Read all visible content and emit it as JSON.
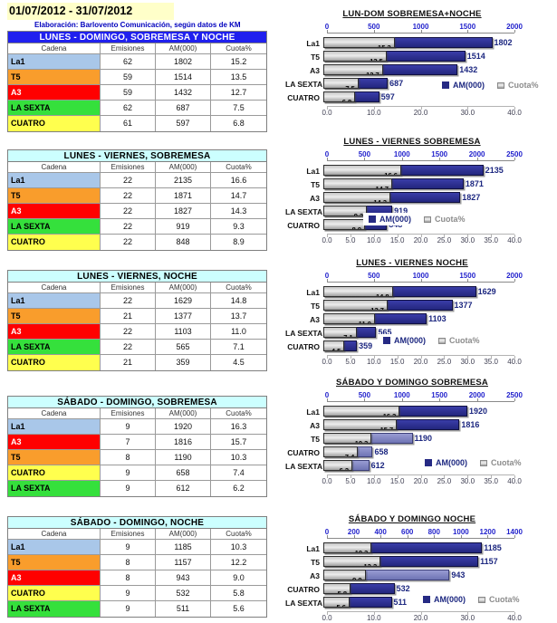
{
  "header": {
    "date_range": "01/07/2012 - 31/07/2012",
    "subtitle": "Elaboración: Barlovento Comunicación, según datos de KM"
  },
  "table_columns": [
    "Cadena",
    "Emisiones",
    "AM(000)",
    "Cuota%"
  ],
  "legend": {
    "am_label": "AM(000)",
    "cuota_label": "Cuota%"
  },
  "channels": {
    "La1": {
      "bg": "#A9C7E9",
      "fg": "#000000"
    },
    "T5": {
      "bg": "#F99D2C",
      "fg": "#000000"
    },
    "A3": {
      "bg": "#FF0000",
      "fg": "#FFFFFF"
    },
    "LA SEXTA": {
      "bg": "#35E03C",
      "fg": "#000000"
    },
    "CUATRO": {
      "bg": "#FFFF4E",
      "fg": "#000000"
    }
  },
  "colors": {
    "am_bar_navy": "#2A2E8F",
    "am_bar_light": "#7E83C3",
    "cuota_bar_gray": "#C0C0C0",
    "blue_header_bg": "#2020EE",
    "cyan_header_bg": "#CCFFFF",
    "top_axis_text": "#2222CC",
    "date_banner_bg": "#FFFFC9",
    "subtitle_text": "#0000BE"
  },
  "sections": [
    {
      "table_title": "LUNES - DOMINGO, SOBREMESA Y NOCHE",
      "header_variant": "blue",
      "chart_title": "LUN-DOM SOBREMESA+NOCHE",
      "top_axis": {
        "ticks": [
          0,
          500,
          1000,
          1500,
          2000
        ],
        "max": 2000
      },
      "bottom_axis": {
        "ticks": [
          "0.0",
          "10.0",
          "20.0",
          "30.0",
          "40.0"
        ],
        "max": 40
      },
      "rows": [
        {
          "channel": "La1",
          "emisiones": "62",
          "am": 1802,
          "cuota": "15.2",
          "bar": "navy"
        },
        {
          "channel": "T5",
          "emisiones": "59",
          "am": 1514,
          "cuota": "13.5",
          "bar": "navy"
        },
        {
          "channel": "A3",
          "emisiones": "59",
          "am": 1432,
          "cuota": "12.7",
          "bar": "navy"
        },
        {
          "channel": "LA SEXTA",
          "emisiones": "62",
          "am": 687,
          "cuota": "7.5",
          "bar": "navy"
        },
        {
          "channel": "CUATRO",
          "emisiones": "61",
          "am": 597,
          "cuota": "6.8",
          "bar": "navy"
        }
      ]
    },
    {
      "table_title": "LUNES - VIERNES, SOBREMESA",
      "header_variant": "cyan",
      "chart_title": "LUNES - VIERNES SOBREMESA",
      "top_axis": {
        "ticks": [
          0,
          500,
          1000,
          1500,
          2000,
          2500
        ],
        "max": 2500
      },
      "bottom_axis": {
        "ticks": [
          "0.0",
          "5.0",
          "10.0",
          "15.0",
          "20.0",
          "25.0",
          "30.0",
          "35.0",
          "40.0"
        ],
        "max": 40
      },
      "rows": [
        {
          "channel": "La1",
          "emisiones": "22",
          "am": 2135,
          "cuota": "16.6",
          "bar": "navy"
        },
        {
          "channel": "T5",
          "emisiones": "22",
          "am": 1871,
          "cuota": "14.7",
          "bar": "navy"
        },
        {
          "channel": "A3",
          "emisiones": "22",
          "am": 1827,
          "cuota": "14.3",
          "bar": "navy"
        },
        {
          "channel": "LA SEXTA",
          "emisiones": "22",
          "am": 919,
          "cuota": "9.3",
          "bar": "navy"
        },
        {
          "channel": "CUATRO",
          "emisiones": "22",
          "am": 848,
          "cuota": "8.9",
          "bar": "navy"
        }
      ]
    },
    {
      "table_title": "LUNES - VIERNES, NOCHE",
      "header_variant": "cyan",
      "chart_title": "LUNES - VIERNES  NOCHE",
      "top_axis": {
        "ticks": [
          0,
          500,
          1000,
          1500,
          2000
        ],
        "max": 2000
      },
      "bottom_axis": {
        "ticks": [
          "0.0",
          "5.0",
          "10.0",
          "15.0",
          "20.0",
          "25.0",
          "30.0",
          "35.0",
          "40.0"
        ],
        "max": 40
      },
      "rows": [
        {
          "channel": "La1",
          "emisiones": "22",
          "am": 1629,
          "cuota": "14.8",
          "bar": "navy"
        },
        {
          "channel": "T5",
          "emisiones": "21",
          "am": 1377,
          "cuota": "13.7",
          "bar": "navy"
        },
        {
          "channel": "A3",
          "emisiones": "22",
          "am": 1103,
          "cuota": "11.0",
          "bar": "navy"
        },
        {
          "channel": "LA SEXTA",
          "emisiones": "22",
          "am": 565,
          "cuota": "7.1",
          "bar": "navy"
        },
        {
          "channel": "CUATRO",
          "emisiones": "21",
          "am": 359,
          "cuota": "4.5",
          "bar": "navy"
        }
      ]
    },
    {
      "table_title": "SÁBADO - DOMINGO, SOBREMESA",
      "header_variant": "cyan",
      "chart_title": "SÁBADO Y DOMINGO SOBREMESA",
      "top_axis": {
        "ticks": [
          0,
          500,
          1000,
          1500,
          2000,
          2500
        ],
        "max": 2500
      },
      "bottom_axis": {
        "ticks": [
          "0.0",
          "5.0",
          "10.0",
          "15.0",
          "20.0",
          "25.0",
          "30.0",
          "35.0",
          "40.0"
        ],
        "max": 40
      },
      "rows": [
        {
          "channel": "La1",
          "emisiones": "9",
          "am": 1920,
          "cuota": "16.3",
          "bar": "navy"
        },
        {
          "channel": "A3",
          "emisiones": "7",
          "am": 1816,
          "cuota": "15.7",
          "bar": "navy"
        },
        {
          "channel": "T5",
          "emisiones": "8",
          "am": 1190,
          "cuota": "10.3",
          "bar": "light"
        },
        {
          "channel": "CUATRO",
          "emisiones": "9",
          "am": 658,
          "cuota": "7.4",
          "bar": "light"
        },
        {
          "channel": "LA SEXTA",
          "emisiones": "9",
          "am": 612,
          "cuota": "6.2",
          "bar": "light"
        }
      ]
    },
    {
      "table_title": "SÁBADO - DOMINGO, NOCHE",
      "header_variant": "cyan",
      "chart_title": "SÁBADO Y DOMINGO  NOCHE",
      "top_axis": {
        "ticks": [
          0,
          200,
          400,
          600,
          800,
          1000,
          1200,
          1400
        ],
        "max": 1400
      },
      "bottom_axis": {
        "ticks": [
          "0.0",
          "10.0",
          "20.0",
          "30.0",
          "40.0"
        ],
        "max": 40
      },
      "rows": [
        {
          "channel": "La1",
          "emisiones": "9",
          "am": 1185,
          "cuota": "10.3",
          "bar": "navy"
        },
        {
          "channel": "T5",
          "emisiones": "8",
          "am": 1157,
          "cuota": "12.2",
          "bar": "navy"
        },
        {
          "channel": "A3",
          "emisiones": "8",
          "am": 943,
          "cuota": "9.0",
          "bar": "light"
        },
        {
          "channel": "CUATRO",
          "emisiones": "9",
          "am": 532,
          "cuota": "5.8",
          "bar": "navy"
        },
        {
          "channel": "LA SEXTA",
          "emisiones": "9",
          "am": 511,
          "cuota": "5.6",
          "bar": "navy"
        }
      ]
    }
  ],
  "chart_data": [
    {
      "type": "bar",
      "orientation": "horizontal",
      "title": "LUN-DOM SOBREMESA+NOCHE",
      "categories": [
        "La1",
        "T5",
        "A3",
        "LA SEXTA",
        "CUATRO"
      ],
      "series": [
        {
          "name": "AM(000)",
          "axis": "top",
          "range": [
            0,
            2000
          ],
          "values": [
            1802,
            1514,
            1432,
            687,
            597
          ]
        },
        {
          "name": "Cuota%",
          "axis": "bottom",
          "range": [
            0,
            40
          ],
          "values": [
            15.2,
            13.5,
            12.7,
            7.5,
            6.8
          ]
        }
      ],
      "legend_position": "inside-right"
    },
    {
      "type": "bar",
      "orientation": "horizontal",
      "title": "LUNES - VIERNES SOBREMESA",
      "categories": [
        "La1",
        "T5",
        "A3",
        "LA SEXTA",
        "CUATRO"
      ],
      "series": [
        {
          "name": "AM(000)",
          "axis": "top",
          "range": [
            0,
            2500
          ],
          "values": [
            2135,
            1871,
            1827,
            919,
            848
          ]
        },
        {
          "name": "Cuota%",
          "axis": "bottom",
          "range": [
            0,
            40
          ],
          "values": [
            16.6,
            14.7,
            14.3,
            9.3,
            8.9
          ]
        }
      ],
      "legend_position": "inside-center"
    },
    {
      "type": "bar",
      "orientation": "horizontal",
      "title": "LUNES - VIERNES  NOCHE",
      "categories": [
        "La1",
        "T5",
        "A3",
        "LA SEXTA",
        "CUATRO"
      ],
      "series": [
        {
          "name": "AM(000)",
          "axis": "top",
          "range": [
            0,
            2000
          ],
          "values": [
            1629,
            1377,
            1103,
            565,
            359
          ]
        },
        {
          "name": "Cuota%",
          "axis": "bottom",
          "range": [
            0,
            40
          ],
          "values": [
            14.8,
            13.7,
            11.0,
            7.1,
            4.5
          ]
        }
      ],
      "legend_position": "inside-center"
    },
    {
      "type": "bar",
      "orientation": "horizontal",
      "title": "SÁBADO Y DOMINGO SOBREMESA",
      "categories": [
        "La1",
        "A3",
        "T5",
        "CUATRO",
        "LA SEXTA"
      ],
      "series": [
        {
          "name": "AM(000)",
          "axis": "top",
          "range": [
            0,
            2500
          ],
          "values": [
            1920,
            1816,
            1190,
            658,
            612
          ]
        },
        {
          "name": "Cuota%",
          "axis": "bottom",
          "range": [
            0,
            40
          ],
          "values": [
            16.3,
            15.7,
            10.3,
            7.4,
            6.2
          ]
        }
      ],
      "legend_position": "inside-right"
    },
    {
      "type": "bar",
      "orientation": "horizontal",
      "title": "SÁBADO Y DOMINGO  NOCHE",
      "categories": [
        "La1",
        "T5",
        "A3",
        "CUATRO",
        "LA SEXTA"
      ],
      "series": [
        {
          "name": "AM(000)",
          "axis": "top",
          "range": [
            0,
            1400
          ],
          "values": [
            1185,
            1157,
            943,
            532,
            511
          ]
        },
        {
          "name": "Cuota%",
          "axis": "bottom",
          "range": [
            0,
            40
          ],
          "values": [
            10.3,
            12.2,
            9.0,
            5.8,
            5.6
          ]
        }
      ],
      "legend_position": "inside-right"
    }
  ]
}
